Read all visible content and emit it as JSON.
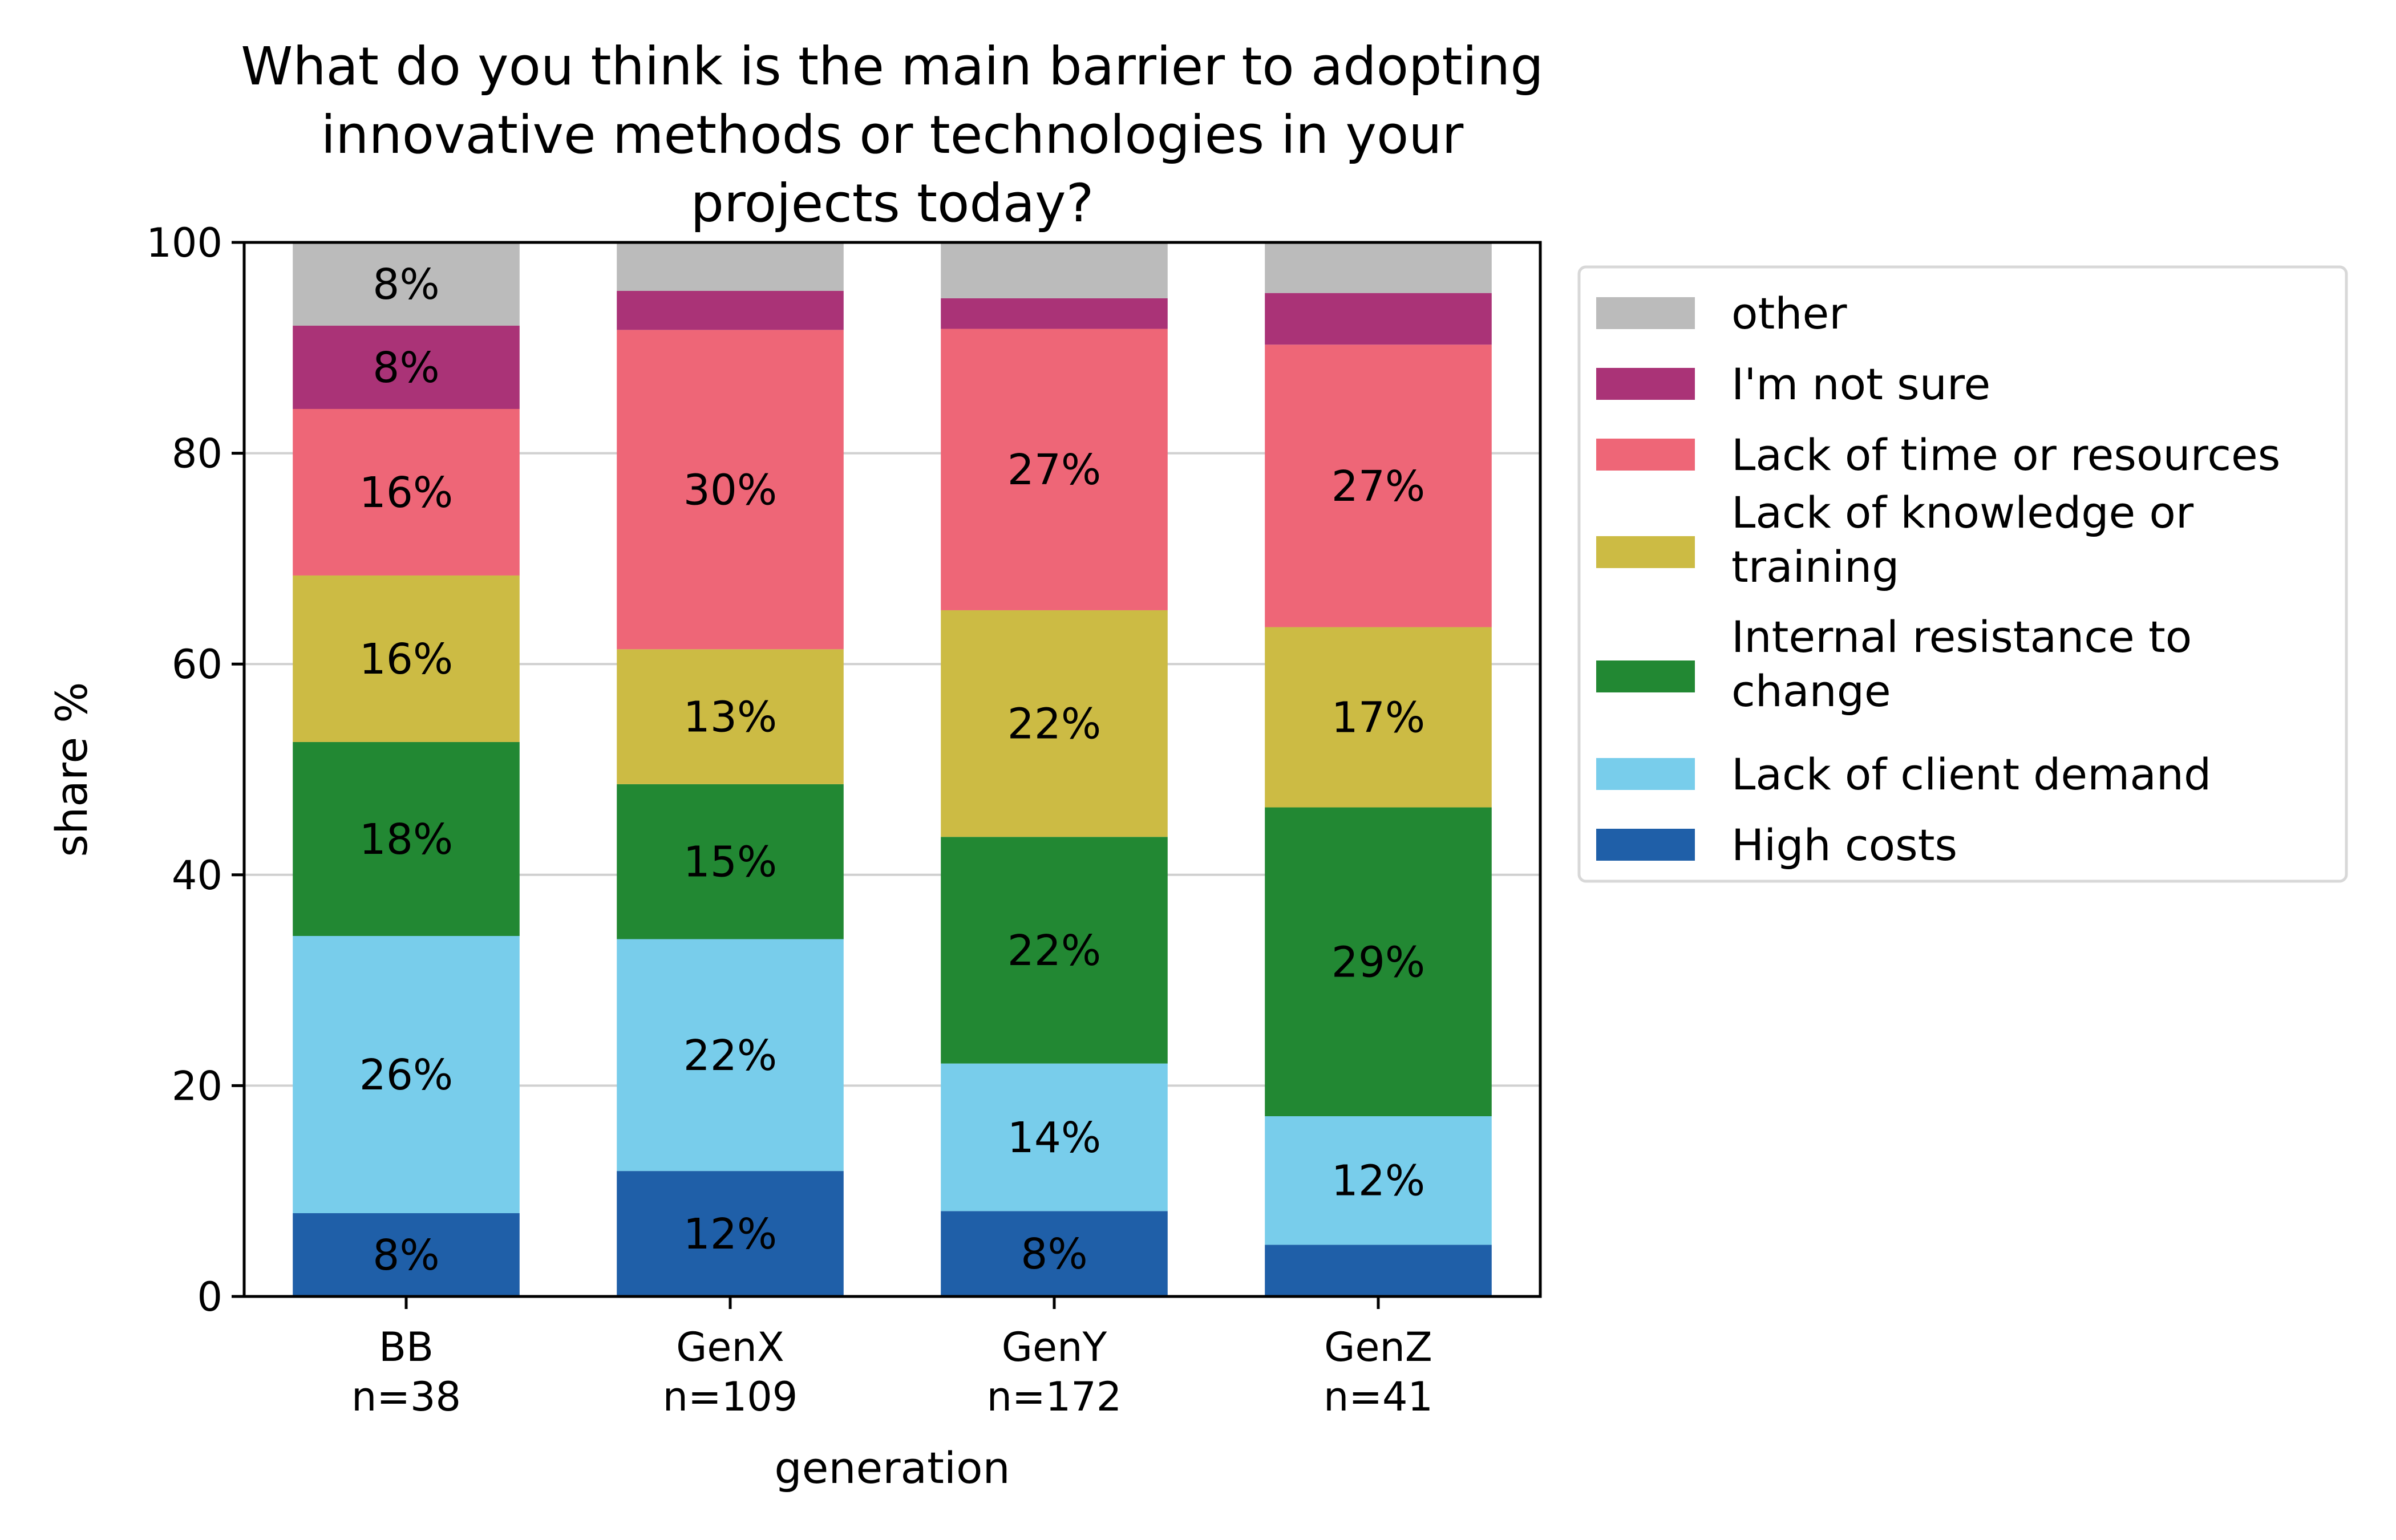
{
  "chart_data": {
    "type": "bar",
    "stacked": true,
    "title": "What do you think is the main barrier to adopting innovative methods or technologies in your projects today?",
    "title_lines": [
      "What do you think is the main barrier to adopting",
      "innovative methods or technologies in your",
      "projects today?"
    ],
    "xlabel": "generation",
    "ylabel": "share %",
    "ylim": [
      0,
      100
    ],
    "yticks": [
      0,
      20,
      40,
      60,
      80,
      100
    ],
    "grid": "y",
    "legend_position": "right",
    "categories": [
      {
        "name": "BB",
        "n": "n=38"
      },
      {
        "name": "GenX",
        "n": "n=109"
      },
      {
        "name": "GenY",
        "n": "n=172"
      },
      {
        "name": "GenZ",
        "n": "n=41"
      }
    ],
    "series": [
      {
        "name": "High costs",
        "color": "#1f5fa8",
        "values": [
          7.9,
          11.9,
          8.1,
          4.9
        ],
        "labels": [
          "8%",
          "12%",
          "8%",
          ""
        ]
      },
      {
        "name": "Lack of client demand",
        "color": "#78cdeb",
        "values": [
          26.3,
          22.0,
          14.0,
          12.2
        ],
        "labels": [
          "26%",
          "22%",
          "14%",
          "12%"
        ]
      },
      {
        "name": "Internal resistance to change",
        "legend_lines": [
          "Internal resistance to",
          "change"
        ],
        "color": "#228833",
        "values": [
          18.4,
          14.7,
          21.5,
          29.3
        ],
        "labels": [
          "18%",
          "15%",
          "22%",
          "29%"
        ]
      },
      {
        "name": "Lack of knowledge or training",
        "legend_lines": [
          "Lack of knowledge or",
          "training"
        ],
        "color": "#ccbb44",
        "values": [
          15.8,
          12.8,
          21.5,
          17.1
        ],
        "labels": [
          "16%",
          "13%",
          "22%",
          "17%"
        ]
      },
      {
        "name": "Lack of time or resources",
        "color": "#ee6677",
        "values": [
          15.8,
          30.3,
          26.7,
          26.8
        ],
        "labels": [
          "16%",
          "30%",
          "27%",
          "27%"
        ]
      },
      {
        "name": "I'm not sure",
        "color": "#aa3377",
        "values": [
          7.9,
          3.7,
          2.9,
          4.9
        ],
        "labels": [
          "8%",
          "",
          "",
          ""
        ]
      },
      {
        "name": "other",
        "color": "#bbbbbb",
        "values": [
          7.9,
          4.6,
          5.2,
          4.9
        ],
        "labels": [
          "8%",
          "",
          "",
          ""
        ]
      }
    ]
  }
}
